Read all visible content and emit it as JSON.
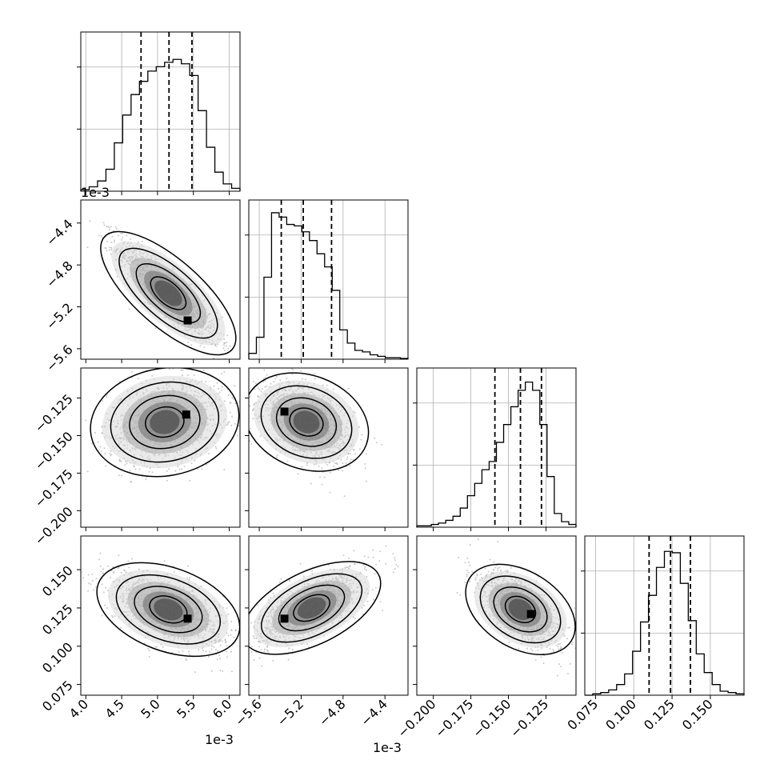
{
  "chart_data": {
    "type": "corner",
    "grid": true,
    "params": [
      {
        "range": [
          0.00393,
          0.00615
        ],
        "x_ticks": [
          0.004,
          0.0045,
          0.005,
          0.0055,
          0.006
        ],
        "x_tick_labels": [
          "4.0",
          "4.5",
          "5.0",
          "5.5",
          "6.0"
        ],
        "offset_label": "1e-3",
        "quantiles": [
          0.00477,
          0.00516,
          0.00548
        ],
        "hist": [
          1,
          3,
          7,
          15,
          33,
          52,
          66,
          75,
          82,
          85,
          88,
          90,
          87,
          79,
          55,
          30,
          13,
          5,
          2
        ],
        "hist_max": 100
      },
      {
        "range": [
          -0.0057,
          -0.00418
        ],
        "ticks": [
          -0.0056,
          -0.0052,
          -0.0048,
          -0.0044
        ],
        "tick_labels": [
          "−5.6",
          "−5.2",
          "−4.8",
          "−4.4"
        ],
        "offset_label": "1e-3",
        "quantiles": [
          -0.00539,
          -0.00518,
          -0.00491
        ],
        "hist": [
          4,
          15,
          56,
          100,
          97,
          92,
          91,
          87,
          81,
          72,
          63,
          47,
          20,
          11,
          6,
          5,
          3,
          2,
          1,
          1,
          0.5
        ],
        "hist_max": 100
      },
      {
        "range": [
          -0.211,
          -0.105
        ],
        "ticks": [
          -0.2,
          -0.175,
          -0.15,
          -0.125
        ],
        "tick_labels": [
          "−0.200",
          "−0.175",
          "−0.150",
          "−0.125"
        ],
        "quantiles": [
          -0.159,
          -0.142,
          -0.128
        ],
        "hist": [
          1,
          1,
          2,
          3,
          5,
          8,
          14,
          23,
          32,
          42,
          48,
          62,
          75,
          88,
          100,
          106,
          100,
          75,
          37,
          10,
          4,
          2
        ],
        "hist_max": 107
      },
      {
        "range": [
          0.068,
          0.172
        ],
        "ticks": [
          0.075,
          0.1,
          0.125,
          0.15
        ],
        "tick_labels": [
          "0.075",
          "0.100",
          "0.125",
          "0.150"
        ],
        "quantiles": [
          0.11,
          0.124,
          0.137
        ],
        "hist": [
          0,
          1,
          2,
          4,
          8,
          16,
          33,
          55,
          75,
          96,
          108,
          107,
          84,
          56,
          31,
          17,
          8,
          3,
          2,
          1
        ],
        "hist_max": 110
      }
    ],
    "pairs": [
      {
        "row": 1,
        "col": 0,
        "mean": [
          0.00515,
          -0.00507
        ],
        "sd": [
          0.00035,
          0.00024
        ],
        "corr": -0.88,
        "peak": [
          0.00542,
          -0.00533
        ]
      },
      {
        "row": 2,
        "col": 0,
        "mean": [
          0.0051,
          -0.141
        ],
        "sd": [
          0.0004,
          0.014
        ],
        "corr": 0.25,
        "peak": [
          0.0054,
          -0.136
        ]
      },
      {
        "row": 2,
        "col": 1,
        "mean": [
          -0.00515,
          -0.141
        ],
        "sd": [
          0.00022,
          0.013
        ],
        "corr": -0.45,
        "peak": [
          -0.00536,
          -0.134
        ]
      },
      {
        "row": 3,
        "col": 0,
        "mean": [
          0.00515,
          0.124
        ],
        "sd": [
          0.00038,
          0.012
        ],
        "corr": -0.55,
        "peak": [
          0.00542,
          0.118
        ]
      },
      {
        "row": 3,
        "col": 1,
        "mean": [
          -0.0051,
          0.125
        ],
        "sd": [
          0.00025,
          0.012
        ],
        "corr": 0.7,
        "peak": [
          -0.00536,
          0.118
        ]
      },
      {
        "row": 3,
        "col": 2,
        "mean": [
          -0.142,
          0.124
        ],
        "sd": [
          0.013,
          0.012
        ],
        "corr": -0.65,
        "peak": [
          -0.135,
          0.121
        ]
      }
    ]
  }
}
